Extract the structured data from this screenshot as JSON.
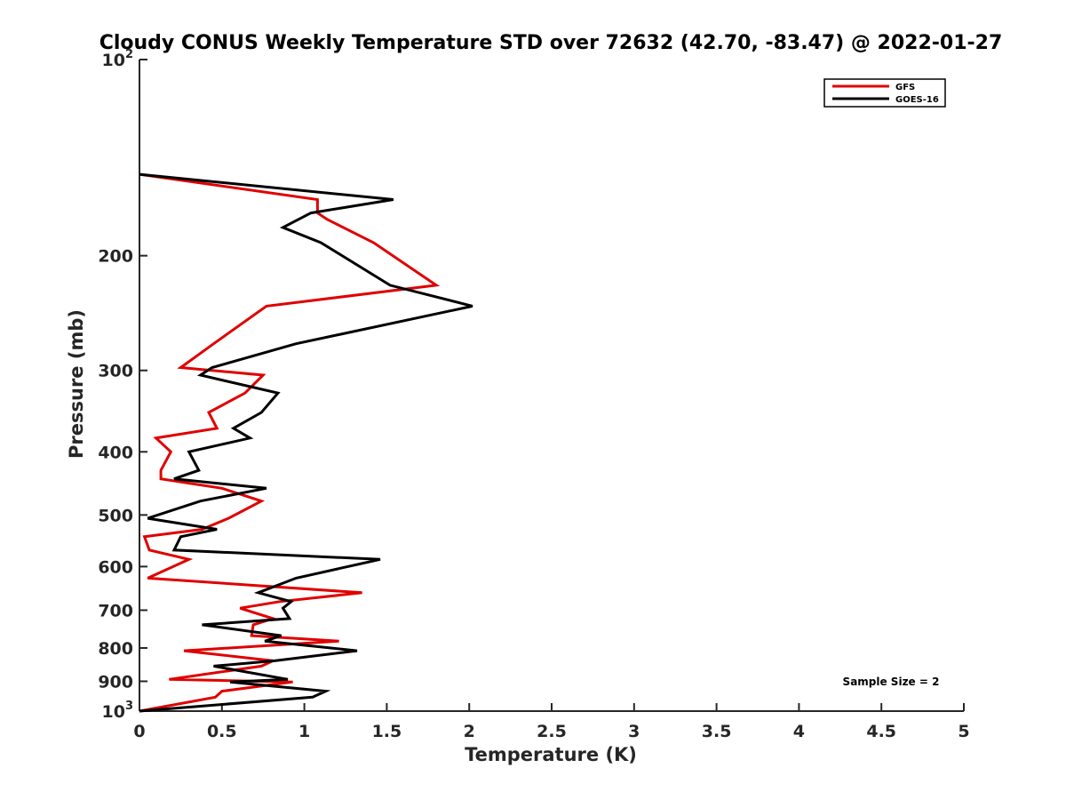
{
  "chart_data": {
    "type": "line",
    "title": "Cloudy CONUS Weekly Temperature STD over 72632 (42.70, -83.47) @ 2022-01-27",
    "xlabel": "Temperature (K)",
    "ylabel": "Pressure (mb)",
    "xlim": [
      0,
      5
    ],
    "ylim": [
      100,
      1000
    ],
    "y_scale": "log",
    "y_reversed": true,
    "x_ticks": [
      "0",
      "0.5",
      "1",
      "1.5",
      "2",
      "2.5",
      "3",
      "3.5",
      "4",
      "4.5",
      "5"
    ],
    "y_ticks": [
      {
        "value": 100,
        "label": "10",
        "sup": "2"
      },
      {
        "value": 200,
        "label": "200"
      },
      {
        "value": 300,
        "label": "300"
      },
      {
        "value": 400,
        "label": "400"
      },
      {
        "value": 500,
        "label": "500"
      },
      {
        "value": 600,
        "label": "600"
      },
      {
        "value": 700,
        "label": "700"
      },
      {
        "value": 800,
        "label": "800"
      },
      {
        "value": 900,
        "label": "900"
      },
      {
        "value": 1000,
        "label": "10",
        "sup": "3"
      }
    ],
    "grid": false,
    "legend_position": "top-right",
    "series": [
      {
        "name": "GFS",
        "color": "#e00000",
        "x": [
          0.0,
          1.08,
          1.08,
          1.14,
          1.42,
          1.8,
          0.77,
          0.45,
          0.25,
          0.75,
          0.64,
          0.42,
          0.47,
          0.1,
          0.19,
          0.13,
          0.13,
          0.5,
          0.74,
          0.54,
          0.38,
          0.03,
          0.06,
          0.3,
          0.05,
          1.35,
          0.85,
          0.61,
          0.81,
          0.69,
          0.68,
          1.21,
          0.27,
          0.81,
          0.74,
          0.18,
          0.93,
          0.5,
          0.46,
          0.0
        ],
        "y": [
          150,
          164,
          172,
          176,
          191,
          222,
          239,
          273,
          297,
          305,
          325,
          348,
          368,
          381,
          400,
          427,
          440,
          455,
          476,
          506,
          526,
          540,
          566,
          585,
          625,
          658,
          679,
          695,
          721,
          737,
          766,
          781,
          808,
          837,
          853,
          894,
          902,
          932,
          952,
          1000
        ]
      },
      {
        "name": "GOES-16",
        "color": "#000000",
        "x": [
          0.0,
          1.54,
          1.04,
          0.87,
          1.1,
          1.52,
          2.02,
          0.95,
          0.44,
          0.37,
          0.84,
          0.74,
          0.57,
          0.67,
          0.3,
          0.36,
          0.21,
          0.77,
          0.37,
          0.05,
          0.47,
          0.25,
          0.21,
          1.46,
          0.95,
          0.72,
          0.92,
          0.87,
          0.91,
          0.38,
          0.86,
          0.76,
          1.32,
          0.82,
          0.45,
          0.9,
          0.55,
          1.13,
          1.05,
          0.0
        ],
        "y": [
          150,
          164,
          172,
          181,
          191,
          222,
          239,
          273,
          297,
          305,
          325,
          348,
          368,
          381,
          400,
          427,
          440,
          455,
          476,
          506,
          526,
          540,
          566,
          585,
          625,
          658,
          679,
          695,
          721,
          737,
          766,
          781,
          808,
          837,
          853,
          894,
          902,
          932,
          952,
          1000
        ]
      }
    ],
    "annotations": [
      "Sample Size = 2"
    ]
  }
}
